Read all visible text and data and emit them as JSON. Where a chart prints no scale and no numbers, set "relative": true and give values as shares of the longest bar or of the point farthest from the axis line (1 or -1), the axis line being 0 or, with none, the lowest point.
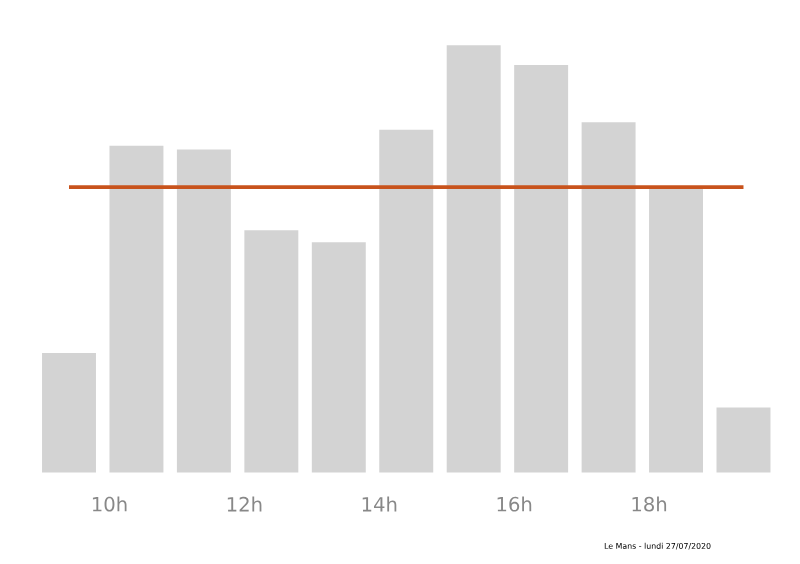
{
  "chart_data": {
    "type": "bar",
    "relative": true,
    "x": [
      9.4,
      10.4,
      11.4,
      12.4,
      13.4,
      14.4,
      15.4,
      16.4,
      17.4,
      18.4,
      19.4
    ],
    "values": [
      0.28,
      0.765,
      0.756,
      0.567,
      0.539,
      0.802,
      1,
      0.954,
      0.82,
      0.668,
      0.152
    ],
    "color": "#d3d3d3",
    "xlim": [
      9,
      19.8
    ],
    "xticks": [
      {
        "value": 10,
        "label": "10h"
      },
      {
        "value": 12,
        "label": "12h"
      },
      {
        "value": 14,
        "label": "14h"
      },
      {
        "value": 16,
        "label": "16h"
      },
      {
        "value": 18,
        "label": "18h"
      }
    ],
    "ref_lines": [
      {
        "axis": "y",
        "value": 0.668,
        "color": "#c8531c"
      }
    ],
    "annotations": [
      "Le Mans - lundi 27/07/2020"
    ]
  }
}
